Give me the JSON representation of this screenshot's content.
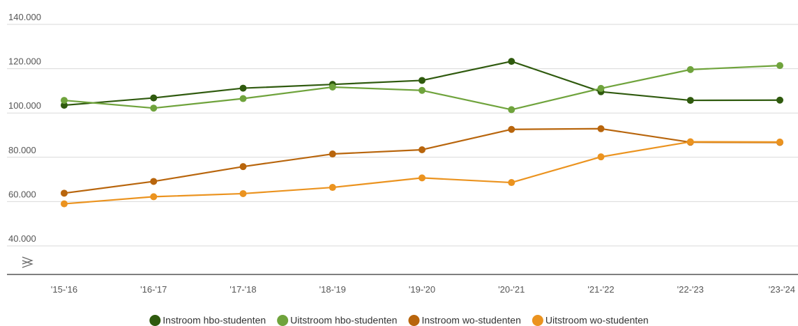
{
  "chart_data": {
    "type": "line",
    "categories": [
      "'15-'16",
      "'16-'17",
      "'17-'18",
      "'18-'19",
      "'19-'20",
      "'20-'21",
      "'21-'22",
      "'22-'23",
      "'23-'24"
    ],
    "y_ticks": [
      "140.000",
      "120.000",
      "100.000",
      "80.000",
      "60.000",
      "40.000"
    ],
    "y_tick_values": [
      140000,
      120000,
      100000,
      80000,
      60000,
      40000
    ],
    "ylim": [
      40000,
      140000
    ],
    "axis_break": true,
    "grid": "horizontal",
    "legend_position": "bottom",
    "series": [
      {
        "name": "Instroom hbo-studenten",
        "color": "#2f5a0e",
        "values": [
          103500,
          106800,
          111200,
          112900,
          114700,
          123300,
          109600,
          105700,
          105800
        ]
      },
      {
        "name": "Uitstroom hbo-studenten",
        "color": "#6fa33c",
        "values": [
          105700,
          102200,
          106500,
          111700,
          110200,
          101500,
          111100,
          119600,
          121400
        ]
      },
      {
        "name": "Instroom wo-studenten",
        "color": "#b8650c",
        "values": [
          63800,
          69100,
          75800,
          81500,
          83400,
          92600,
          92900,
          86800,
          86700
        ]
      },
      {
        "name": "Uitstroom wo-studenten",
        "color": "#eb931f",
        "values": [
          59000,
          62200,
          63600,
          66400,
          70700,
          68600,
          80200,
          87000,
          86900
        ]
      }
    ]
  }
}
